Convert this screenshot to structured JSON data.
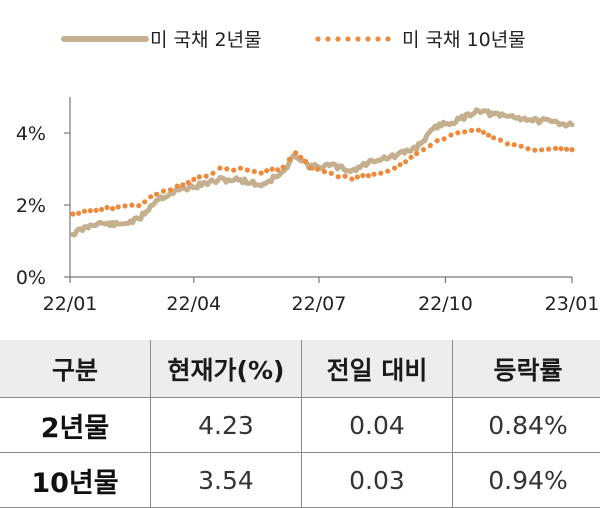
{
  "chart_data": {
    "type": "line",
    "x_ticks": [
      "22/01",
      "22/04",
      "22/07",
      "22/10",
      "23/01"
    ],
    "y_ticks": [
      "0%",
      "2%",
      "4%"
    ],
    "ylim": [
      0,
      5
    ],
    "x_range": [
      "2022-01",
      "2023-01"
    ],
    "legend_position": "top",
    "series": [
      {
        "name": "미 국채 2년물",
        "style": "solid",
        "color": "#c4b08f",
        "x": [
          "2022-01-03",
          "2022-01-20",
          "2022-02-05",
          "2022-02-20",
          "2022-03-05",
          "2022-03-20",
          "2022-04-05",
          "2022-04-20",
          "2022-05-05",
          "2022-05-20",
          "2022-06-05",
          "2022-06-14",
          "2022-06-25",
          "2022-07-10",
          "2022-07-25",
          "2022-08-10",
          "2022-08-25",
          "2022-09-10",
          "2022-09-25",
          "2022-10-10",
          "2022-10-25",
          "2022-11-05",
          "2022-11-20",
          "2022-12-05",
          "2022-12-20",
          "2023-01-01"
        ],
        "y": [
          1.2,
          1.5,
          1.45,
          1.6,
          2.15,
          2.4,
          2.55,
          2.7,
          2.7,
          2.55,
          2.9,
          3.4,
          3.05,
          3.1,
          2.95,
          3.25,
          3.35,
          3.6,
          4.2,
          4.35,
          4.65,
          4.5,
          4.45,
          4.35,
          4.3,
          4.23
        ]
      },
      {
        "name": "미 국채 10년물",
        "style": "dotted",
        "color": "#ee8a3c",
        "x": [
          "2022-01-03",
          "2022-01-20",
          "2022-02-05",
          "2022-02-20",
          "2022-03-05",
          "2022-03-20",
          "2022-04-05",
          "2022-04-20",
          "2022-05-05",
          "2022-05-20",
          "2022-06-05",
          "2022-06-14",
          "2022-06-25",
          "2022-07-10",
          "2022-07-25",
          "2022-08-10",
          "2022-08-25",
          "2022-09-10",
          "2022-09-25",
          "2022-10-10",
          "2022-10-25",
          "2022-11-05",
          "2022-11-20",
          "2022-12-05",
          "2022-12-20",
          "2023-01-01"
        ],
        "y": [
          1.75,
          1.85,
          1.95,
          2.0,
          2.3,
          2.5,
          2.75,
          3.0,
          3.0,
          2.9,
          3.05,
          3.45,
          3.05,
          2.85,
          2.75,
          2.85,
          3.0,
          3.4,
          3.8,
          4.0,
          4.1,
          3.85,
          3.65,
          3.55,
          3.6,
          3.54
        ]
      }
    ]
  },
  "table": {
    "headers": [
      "구분",
      "현재가(%)",
      "전일 대비",
      "등락률"
    ],
    "rows": [
      [
        "2년물",
        "4.23",
        "0.04",
        "0.84%"
      ],
      [
        "10년물",
        "3.54",
        "0.03",
        "0.94%"
      ]
    ]
  }
}
